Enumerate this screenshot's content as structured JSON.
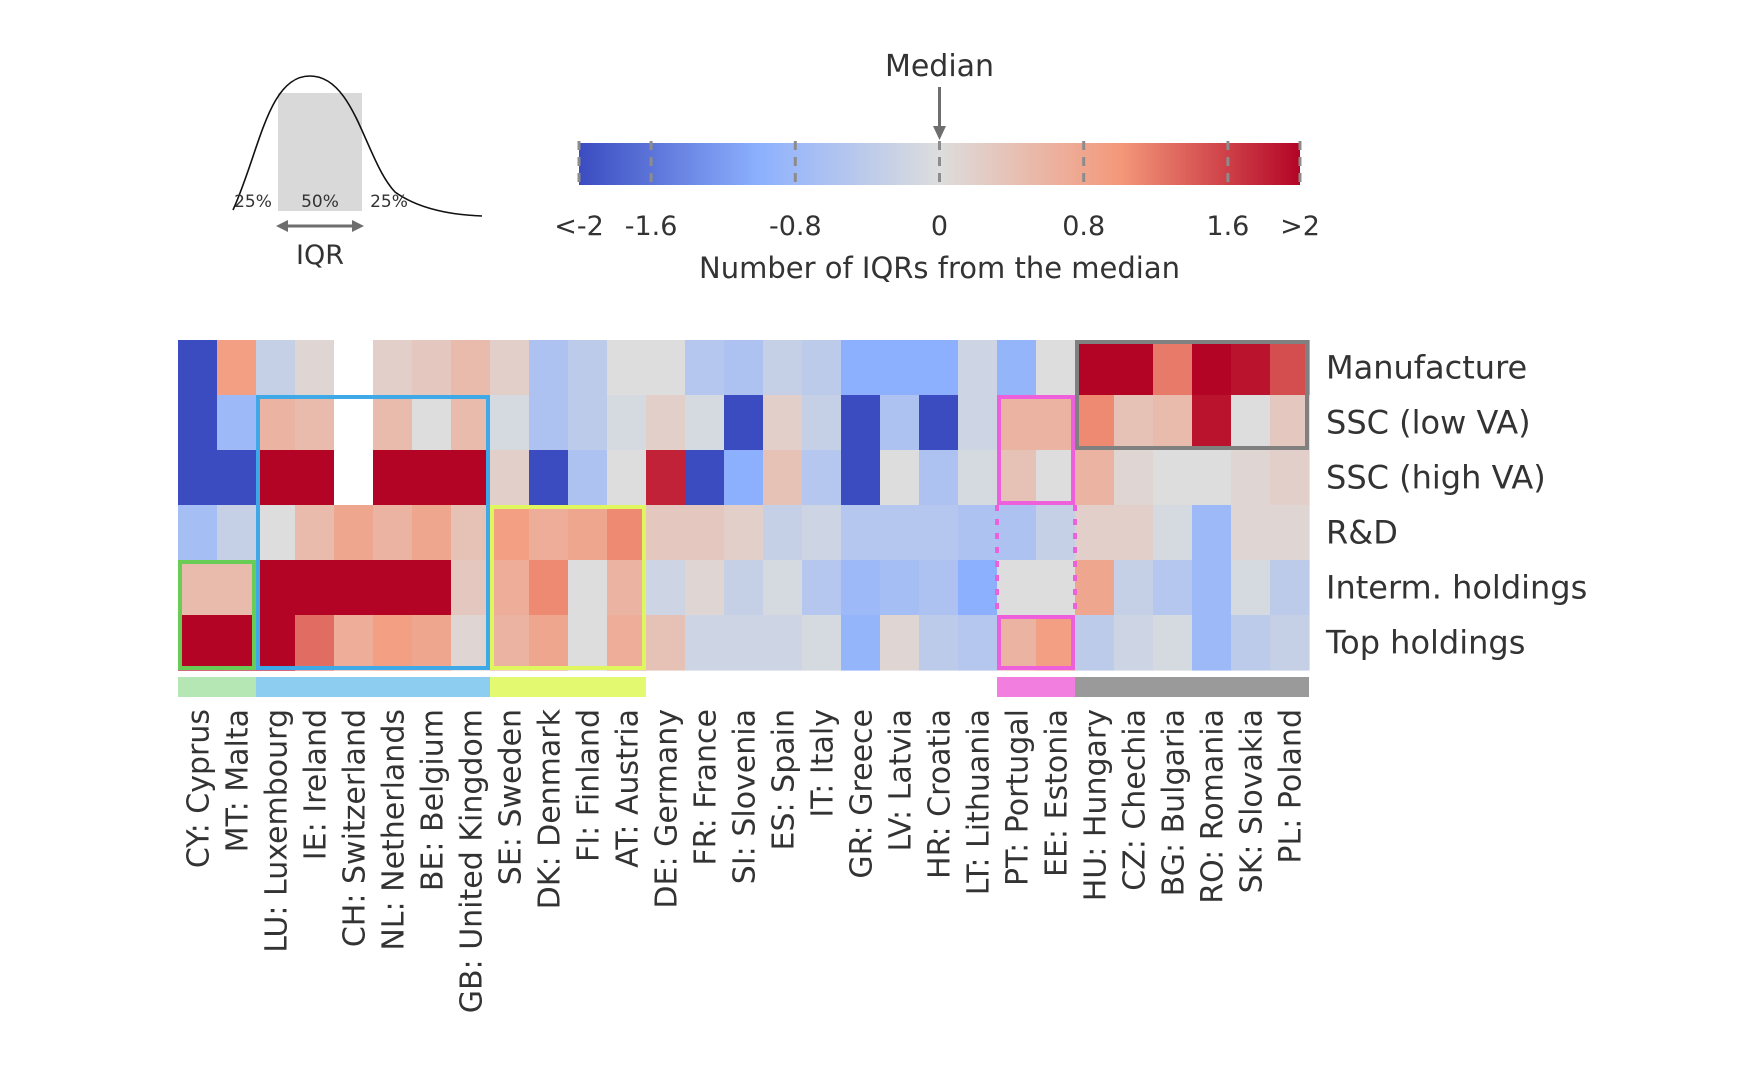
{
  "chart_data": {
    "type": "heatmap",
    "colormap": "coolwarm",
    "colorbar": {
      "title": "Number of IQRs from the median",
      "median_label": "Median",
      "ticks": [
        -2,
        -1.6,
        -0.8,
        0,
        0.8,
        1.6,
        2
      ],
      "tick_labels": [
        "<-2",
        "-1.6",
        "-0.8",
        "0",
        "0.8",
        "1.6",
        ">2"
      ],
      "range": [
        -2,
        2
      ]
    },
    "iqr_legend": {
      "label": "IQR",
      "percents": [
        "25%",
        "50%",
        "25%"
      ]
    },
    "rows": [
      "Manufacture",
      "SSC (low VA)",
      "SSC (high VA)",
      "R&D",
      "Interm. holdings",
      "Top holdings"
    ],
    "columns": [
      "CY: Cyprus",
      "MT: Malta",
      "LU: Luxembourg",
      "IE: Ireland",
      "CH: Switzerland",
      "NL: Netherlands",
      "BE: Belgium",
      "GB: United Kingdom",
      "SE: Sweden",
      "DK: Denmark",
      "FI: Finland",
      "AT: Austria",
      "DE: Germany",
      "FR: France",
      "SI: Slovenia",
      "ES: Spain",
      "IT: Italy",
      "GR: Greece",
      "LV: Latvia",
      "HR: Croatia",
      "LT: Lithuania",
      "PT: Portugal",
      "EE: Estonia",
      "HU: Hungary",
      "CZ: Chechia",
      "BG: Bulgaria",
      "RO: Romania",
      "SK: Slovakia",
      "PL: Poland"
    ],
    "values": [
      [
        -2,
        0.9,
        -0.3,
        0.1,
        null,
        0.2,
        0.3,
        0.5,
        0.2,
        -0.6,
        -0.4,
        0,
        0,
        -0.5,
        -0.6,
        -0.3,
        -0.4,
        -1,
        -1,
        -1,
        -0.2,
        -0.9,
        0,
        2.2,
        2.1,
        1.2,
        2,
        1.9,
        1.5
      ],
      [
        -2,
        -0.8,
        0.6,
        0.5,
        null,
        0.5,
        0,
        0.5,
        -0.1,
        -0.6,
        -0.4,
        -0.1,
        0.2,
        -0.1,
        -2,
        0.2,
        -0.3,
        -2,
        -0.6,
        -2,
        -0.2,
        0.6,
        0.6,
        1.1,
        0.4,
        0.5,
        1.9,
        0,
        0.3
      ],
      [
        -2,
        -2,
        2,
        2,
        null,
        2,
        2,
        2,
        0.2,
        -2,
        -0.6,
        0,
        1.8,
        -2,
        -1,
        0.4,
        -0.5,
        -2,
        0,
        -0.6,
        -0.1,
        0.4,
        0,
        0.6,
        0.1,
        0,
        0,
        0.1,
        0.2
      ],
      [
        -0.7,
        -0.3,
        0,
        0.5,
        0.8,
        0.6,
        0.8,
        0.4,
        0.9,
        0.7,
        0.8,
        1.1,
        0.3,
        0.3,
        0.2,
        -0.3,
        -0.2,
        -0.5,
        -0.5,
        -0.5,
        -0.6,
        -0.6,
        -0.3,
        0.2,
        0.2,
        -0.1,
        -0.8,
        0.1,
        0.1
      ],
      [
        0.5,
        0.5,
        2,
        2,
        2,
        2,
        2,
        0.3,
        0.7,
        1.1,
        0,
        0.6,
        -0.2,
        0.1,
        -0.3,
        -0.1,
        -0.5,
        -0.8,
        -0.7,
        -0.6,
        -1,
        0,
        0,
        0.8,
        -0.3,
        -0.5,
        -0.8,
        -0.1,
        -0.4
      ],
      [
        2,
        2,
        2,
        1.3,
        0.7,
        0.9,
        0.8,
        0.1,
        0.6,
        0.8,
        0,
        0.7,
        0.4,
        -0.2,
        -0.2,
        -0.2,
        -0.1,
        -0.9,
        0.1,
        -0.4,
        -0.5,
        0.6,
        0.9,
        -0.4,
        -0.2,
        -0.1,
        -0.8,
        -0.4,
        -0.3
      ]
    ],
    "groups": [
      {
        "start": 0,
        "end": 1,
        "color": "#b5e7b5"
      },
      {
        "start": 2,
        "end": 7,
        "color": "#8ccdf0"
      },
      {
        "start": 8,
        "end": 11,
        "color": "#e3f96f"
      },
      {
        "start": 21,
        "end": 22,
        "color": "#f27fe0"
      },
      {
        "start": 23,
        "end": 28,
        "color": "#9a9a9a"
      }
    ],
    "highlight_boxes": [
      {
        "col_start": 0,
        "col_end": 1,
        "row_start": 4,
        "row_end": 5,
        "color": "#68cc55",
        "style": "solid"
      },
      {
        "col_start": 2,
        "col_end": 7,
        "row_start": 1,
        "row_end": 5,
        "color": "#3fa9e8",
        "style": "solid"
      },
      {
        "col_start": 8,
        "col_end": 11,
        "row_start": 3,
        "row_end": 5,
        "color": "#e0f65f",
        "style": "solid"
      },
      {
        "col_start": 21,
        "col_end": 22,
        "row_start": 1,
        "row_end": 2,
        "color": "#ee5fdc",
        "style": "solid"
      },
      {
        "col_start": 21,
        "col_end": 22,
        "row_start": 3,
        "row_end": 4,
        "color": "#ee5fdc",
        "style": "dotted"
      },
      {
        "col_start": 21,
        "col_end": 22,
        "row_start": 5,
        "row_end": 5,
        "color": "#ee5fdc",
        "style": "solid"
      },
      {
        "col_start": 23,
        "col_end": 28,
        "row_start": 0,
        "row_end": 1,
        "color": "#808080",
        "style": "solid"
      }
    ]
  }
}
